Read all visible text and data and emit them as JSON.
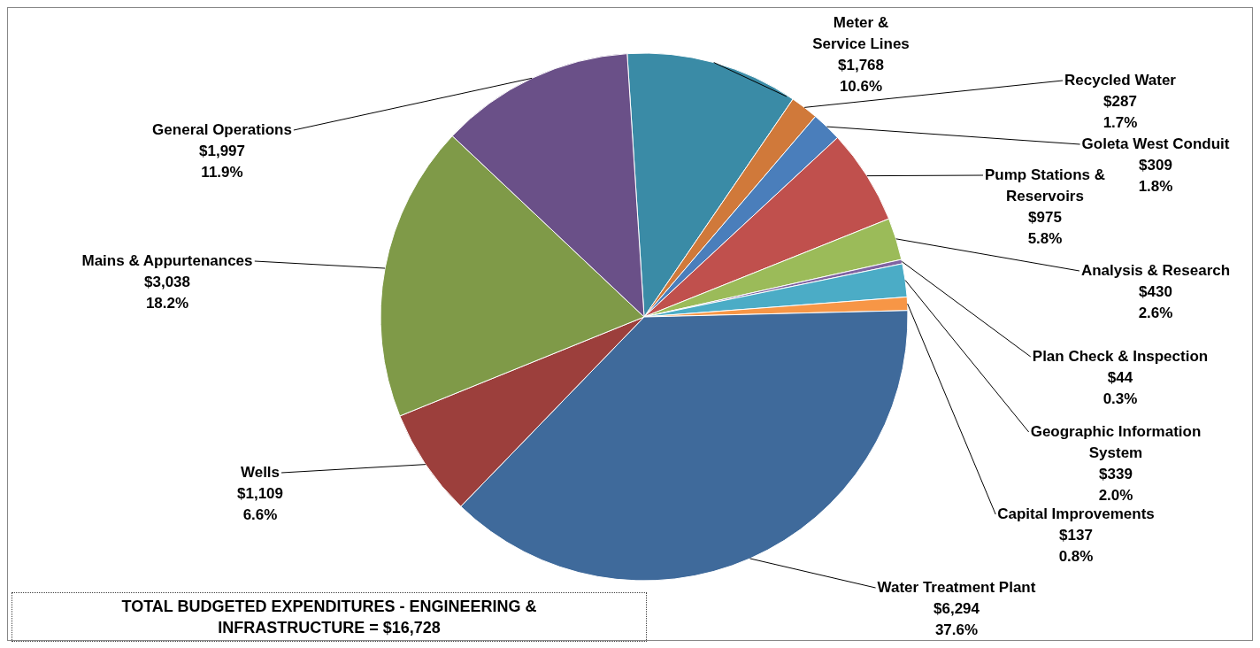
{
  "chart_data": {
    "type": "pie",
    "categories": [
      "Meter & Service Lines",
      "Recycled Water",
      "Goleta West Conduit",
      "Pump Stations & Reservoirs",
      "Analysis & Research",
      "Plan Check & Inspection",
      "Geographic Information System",
      "Capital Improvements",
      "Water Treatment Plant",
      "Wells",
      "Mains & Appurtenances",
      "General Operations"
    ],
    "values": [
      1768,
      287,
      309,
      975,
      430,
      44,
      339,
      137,
      6294,
      1109,
      3038,
      1997
    ],
    "value_labels": [
      "$1,768\n10.6%",
      "$287\n1.7%",
      "$309\n1.8%",
      "$975\n5.8%",
      "$430\n2.6%",
      "$44\n0.3%",
      "$339\n2.0%",
      "$137\n0.8%",
      "$6,294\n37.6%",
      "$1,109\n6.6%",
      "$3,038\n18.2%",
      "$1,997\n11.9%"
    ],
    "colors": [
      "#3a8ba6",
      "#d0793a",
      "#4a7ebb",
      "#c0504d",
      "#9bbb59",
      "#8064a2",
      "#4bacc6",
      "#f79646",
      "#3f6a9b",
      "#9c3f3c",
      "#7f9a48",
      "#6a5088"
    ],
    "legend": false,
    "annotations": [
      "TOTAL BUDGETED EXPENDITURES - ENGINEERING &\nINFRASTRUCTURE = $16,728"
    ]
  }
}
